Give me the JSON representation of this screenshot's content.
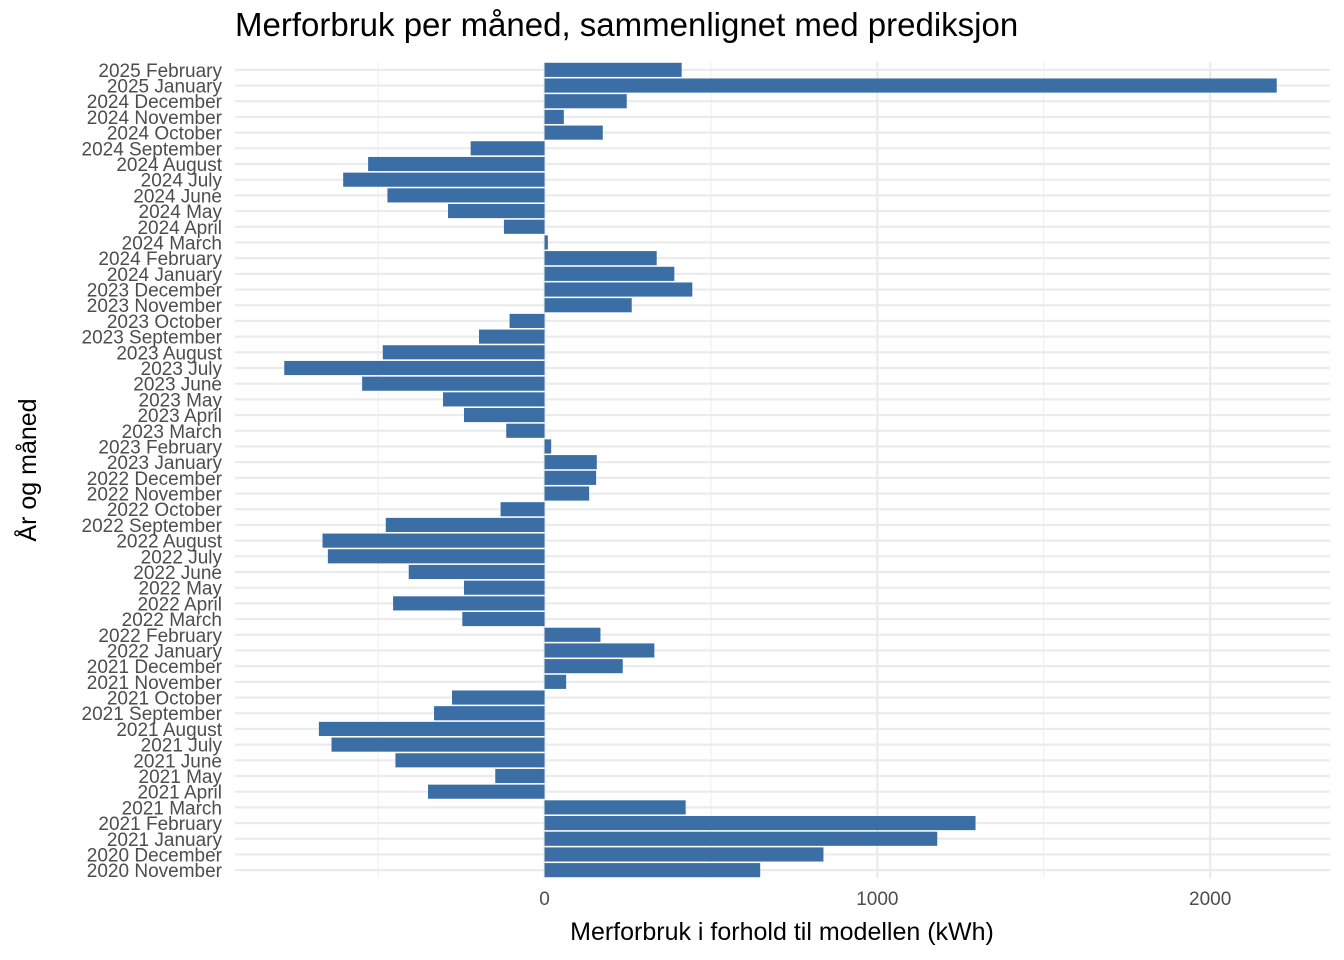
{
  "chart_data": {
    "type": "bar",
    "orientation": "horizontal",
    "title": "Merforbruk per måned, sammenlignet med prediksjon",
    "xlabel": "Merforbruk i forhold til modellen (kWh)",
    "ylabel": "År og måned",
    "xlim": [
      -930,
      2360
    ],
    "xticks": [
      0,
      1000,
      2000
    ],
    "xtick_labels": [
      "0",
      "1000",
      "2000"
    ],
    "grid": true,
    "bar_color": "#3a6ea5",
    "categories": [
      "2020 November",
      "2020 December",
      "2021 January",
      "2021 February",
      "2021 March",
      "2021 April",
      "2021 May",
      "2021 June",
      "2021 July",
      "2021 August",
      "2021 September",
      "2021 October",
      "2021 November",
      "2021 December",
      "2022 January",
      "2022 February",
      "2022 March",
      "2022 April",
      "2022 May",
      "2022 June",
      "2022 July",
      "2022 August",
      "2022 September",
      "2022 October",
      "2022 November",
      "2022 December",
      "2023 January",
      "2023 February",
      "2023 March",
      "2023 April",
      "2023 May",
      "2023 June",
      "2023 July",
      "2023 August",
      "2023 September",
      "2023 October",
      "2023 November",
      "2023 December",
      "2024 January",
      "2024 February",
      "2024 March",
      "2024 April",
      "2024 May",
      "2024 June",
      "2024 July",
      "2024 August",
      "2024 September",
      "2024 October",
      "2024 November",
      "2024 December",
      "2025 January",
      "2025 February"
    ],
    "values": [
      648,
      838,
      1180,
      1295,
      424,
      -350,
      -148,
      -448,
      -640,
      -678,
      -332,
      -278,
      65,
      235,
      330,
      168,
      -247,
      -455,
      -242,
      -408,
      -651,
      -667,
      -477,
      -132,
      134,
      155,
      157,
      20,
      -115,
      -242,
      -305,
      -548,
      -782,
      -486,
      -197,
      -105,
      262,
      444,
      390,
      337,
      10,
      -122,
      -290,
      -472,
      -605,
      -530,
      -222,
      175,
      58,
      247,
      2200,
      412
    ]
  }
}
